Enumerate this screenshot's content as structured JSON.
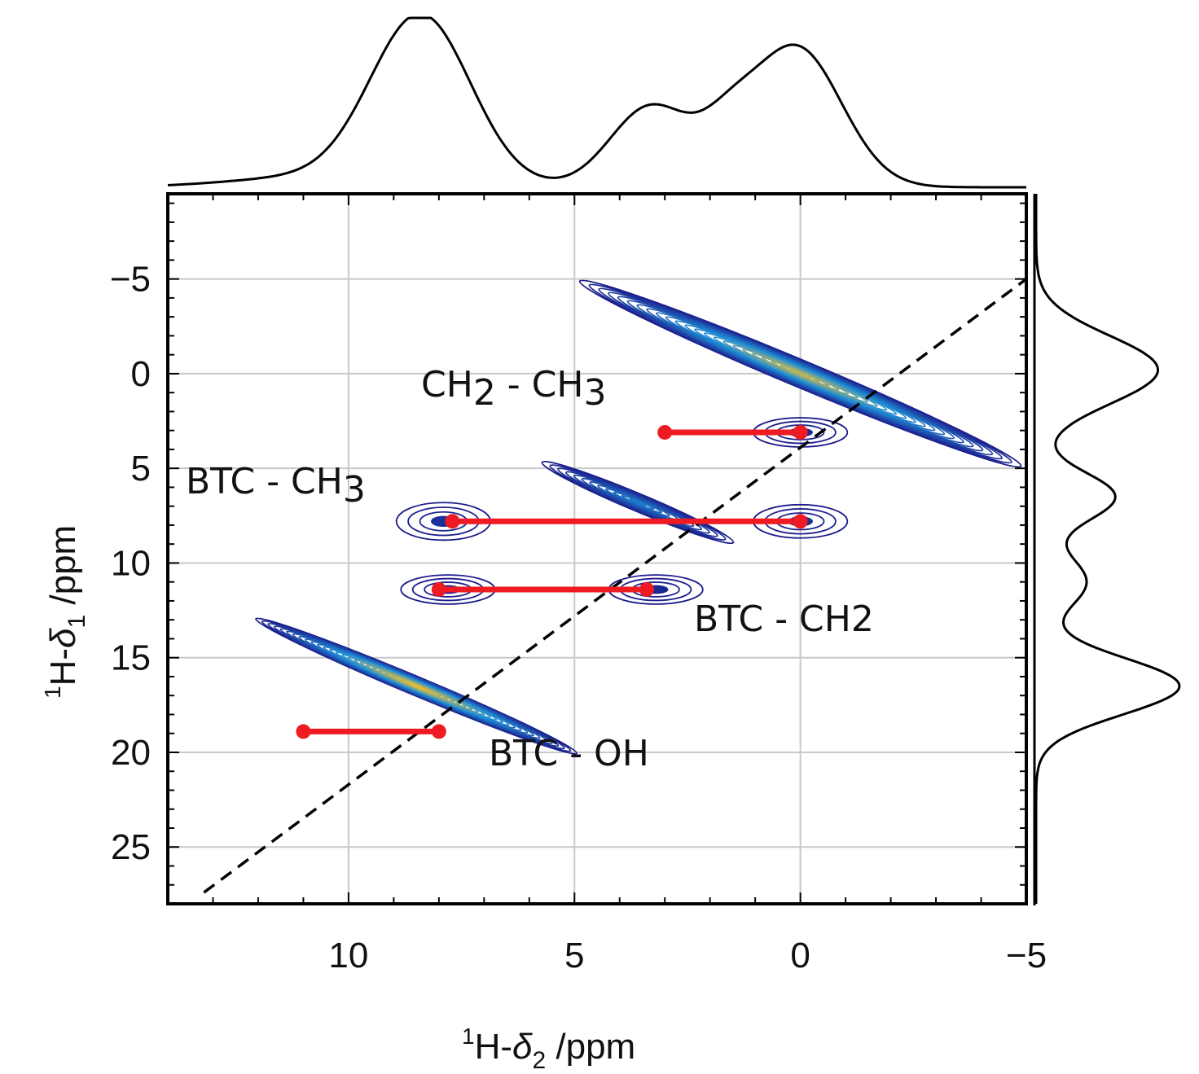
{
  "chart_data": {
    "type": "2d-contour",
    "title": "",
    "xlabel": {
      "sup": "1",
      "main": "H-",
      "delta": "δ",
      "sub": "2",
      "unit": " /ppm"
    },
    "ylabel": {
      "sup": "1",
      "main": "H-",
      "delta": "δ",
      "sub": "1",
      "unit": " /ppm"
    },
    "xlim": [
      14,
      -5
    ],
    "ylim": [
      -9.5,
      28
    ],
    "xticks": [
      10,
      5,
      0,
      -5
    ],
    "xtick_labels": [
      "10",
      "5",
      "0",
      "−5"
    ],
    "yticks": [
      -5,
      0,
      5,
      10,
      15,
      20,
      25
    ],
    "ytick_labels": [
      "−5",
      "0",
      "5",
      "10",
      "15",
      "20",
      "25"
    ],
    "grid": true,
    "diagonal": {
      "style": "dashed",
      "color": "#000000"
    },
    "peaks": [
      {
        "x": 8.5,
        "y": 16.5,
        "sx": 1.9,
        "sy": 1.6,
        "rho": 0.82,
        "amp": 1.0
      },
      {
        "x": 0.0,
        "y": 0.0,
        "sx": 2.4,
        "sy": 2.3,
        "rho": 0.95,
        "amp": 0.9
      },
      {
        "x": 3.6,
        "y": 6.8,
        "sx": 1.0,
        "sy": 1.5,
        "rho": 0.85,
        "amp": 0.45
      },
      {
        "x": 7.9,
        "y": 7.8,
        "sx": 0.8,
        "sy": 0.9,
        "rho": 0.0,
        "amp": 0.1
      },
      {
        "x": 0.0,
        "y": 7.8,
        "sx": 0.8,
        "sy": 0.8,
        "rho": 0.0,
        "amp": 0.1
      },
      {
        "x": 3.2,
        "y": 11.4,
        "sx": 0.8,
        "sy": 0.7,
        "rho": 0.0,
        "amp": 0.06
      },
      {
        "x": 7.8,
        "y": 11.4,
        "sx": 0.8,
        "sy": 0.7,
        "rho": 0.0,
        "amp": 0.06
      },
      {
        "x": 0.0,
        "y": 3.1,
        "sx": 0.8,
        "sy": 0.7,
        "rho": 0.0,
        "amp": 0.08
      }
    ],
    "correlations": [
      {
        "label": "CH2-CH3",
        "x1": 3.0,
        "x2": 0.0,
        "y": 3.1
      },
      {
        "label": "BTC-CH3",
        "x1": 7.7,
        "x2": 0.0,
        "y": 7.8
      },
      {
        "label": "BTC-CH2",
        "x1": 8.0,
        "x2": 3.4,
        "y": 11.4
      },
      {
        "label": "BTC-OH",
        "x1": 11.0,
        "x2": 8.0,
        "y": 18.9
      }
    ],
    "annotations": [
      {
        "name": "annotation-ch2-ch3",
        "parts": [
          "CH",
          "2",
          " - CH",
          "3"
        ]
      },
      {
        "name": "annotation-btc-ch3",
        "parts": [
          "BTC - CH",
          "3"
        ]
      },
      {
        "name": "annotation-btc-ch2",
        "parts": [
          "BTC - CH2"
        ]
      },
      {
        "name": "annotation-btc-oh",
        "parts": [
          "BTC - OH"
        ]
      }
    ],
    "projection_top": {
      "axis": "x",
      "peaks": [
        {
          "center": 8.4,
          "height": 1.0,
          "width": 1.1
        },
        {
          "center": 3.3,
          "height": 0.48,
          "width": 0.9
        },
        {
          "center": 0.1,
          "height": 0.83,
          "width": 1.0
        },
        {
          "center": 10.8,
          "height": 0.06,
          "width": 1.8
        },
        {
          "center": 1.6,
          "height": 0.22,
          "width": 0.6
        }
      ]
    },
    "projection_right": {
      "axis": "y",
      "peaks": [
        {
          "center": -0.2,
          "height": 0.85,
          "width": 1.8
        },
        {
          "center": 6.5,
          "height": 0.55,
          "width": 1.3
        },
        {
          "center": 11.0,
          "height": 0.35,
          "width": 1.4
        },
        {
          "center": 16.5,
          "height": 1.0,
          "width": 1.5
        }
      ]
    },
    "colors": {
      "contour_low": "#1b1b8a",
      "contour_mid": "#1f8fd8",
      "contour_high": "#f2c22c",
      "correlation": "#ee1b22",
      "axis": "#000000",
      "grid": "#c8c8c8"
    }
  }
}
